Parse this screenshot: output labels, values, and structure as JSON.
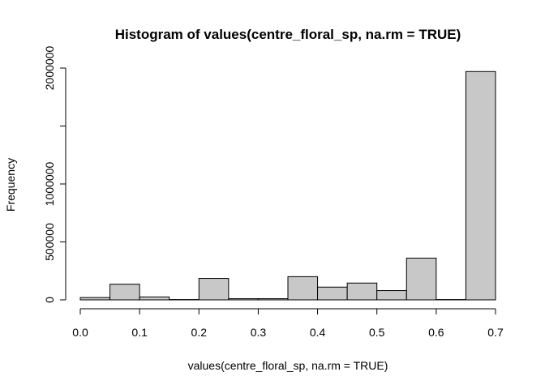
{
  "chart_data": {
    "type": "bar",
    "title": "Histogram of values(centre_floral_sp, na.rm = TRUE)",
    "xlabel": "values(centre_floral_sp, na.rm = TRUE)",
    "ylabel": "Frequency",
    "xlim": [
      0,
      0.7
    ],
    "ylim": [
      0,
      2000000
    ],
    "x_ticks": [
      "0.0",
      "0.1",
      "0.2",
      "0.3",
      "0.4",
      "0.5",
      "0.6",
      "0.7"
    ],
    "x_tick_values": [
      0,
      0.1,
      0.2,
      0.3,
      0.4,
      0.5,
      0.6,
      0.7
    ],
    "y_ticks": [
      "0",
      "500000",
      "1000000",
      "2000000"
    ],
    "y_tick_values": [
      0,
      500000,
      1000000,
      2000000
    ],
    "y_minor_tick_values": [
      1500000
    ],
    "bar_fill": "#c8c8c8",
    "bar_stroke": "#000000",
    "bins": [
      {
        "start": 0.0,
        "end": 0.05,
        "count": 20000
      },
      {
        "start": 0.05,
        "end": 0.1,
        "count": 135000
      },
      {
        "start": 0.1,
        "end": 0.15,
        "count": 25000
      },
      {
        "start": 0.15,
        "end": 0.2,
        "count": 3000
      },
      {
        "start": 0.2,
        "end": 0.25,
        "count": 185000
      },
      {
        "start": 0.25,
        "end": 0.3,
        "count": 10000
      },
      {
        "start": 0.3,
        "end": 0.35,
        "count": 10000
      },
      {
        "start": 0.35,
        "end": 0.4,
        "count": 200000
      },
      {
        "start": 0.4,
        "end": 0.45,
        "count": 110000
      },
      {
        "start": 0.45,
        "end": 0.5,
        "count": 145000
      },
      {
        "start": 0.5,
        "end": 0.55,
        "count": 80000
      },
      {
        "start": 0.55,
        "end": 0.6,
        "count": 360000
      },
      {
        "start": 0.6,
        "end": 0.65,
        "count": 3000
      },
      {
        "start": 0.65,
        "end": 0.7,
        "count": 1970000
      }
    ]
  }
}
